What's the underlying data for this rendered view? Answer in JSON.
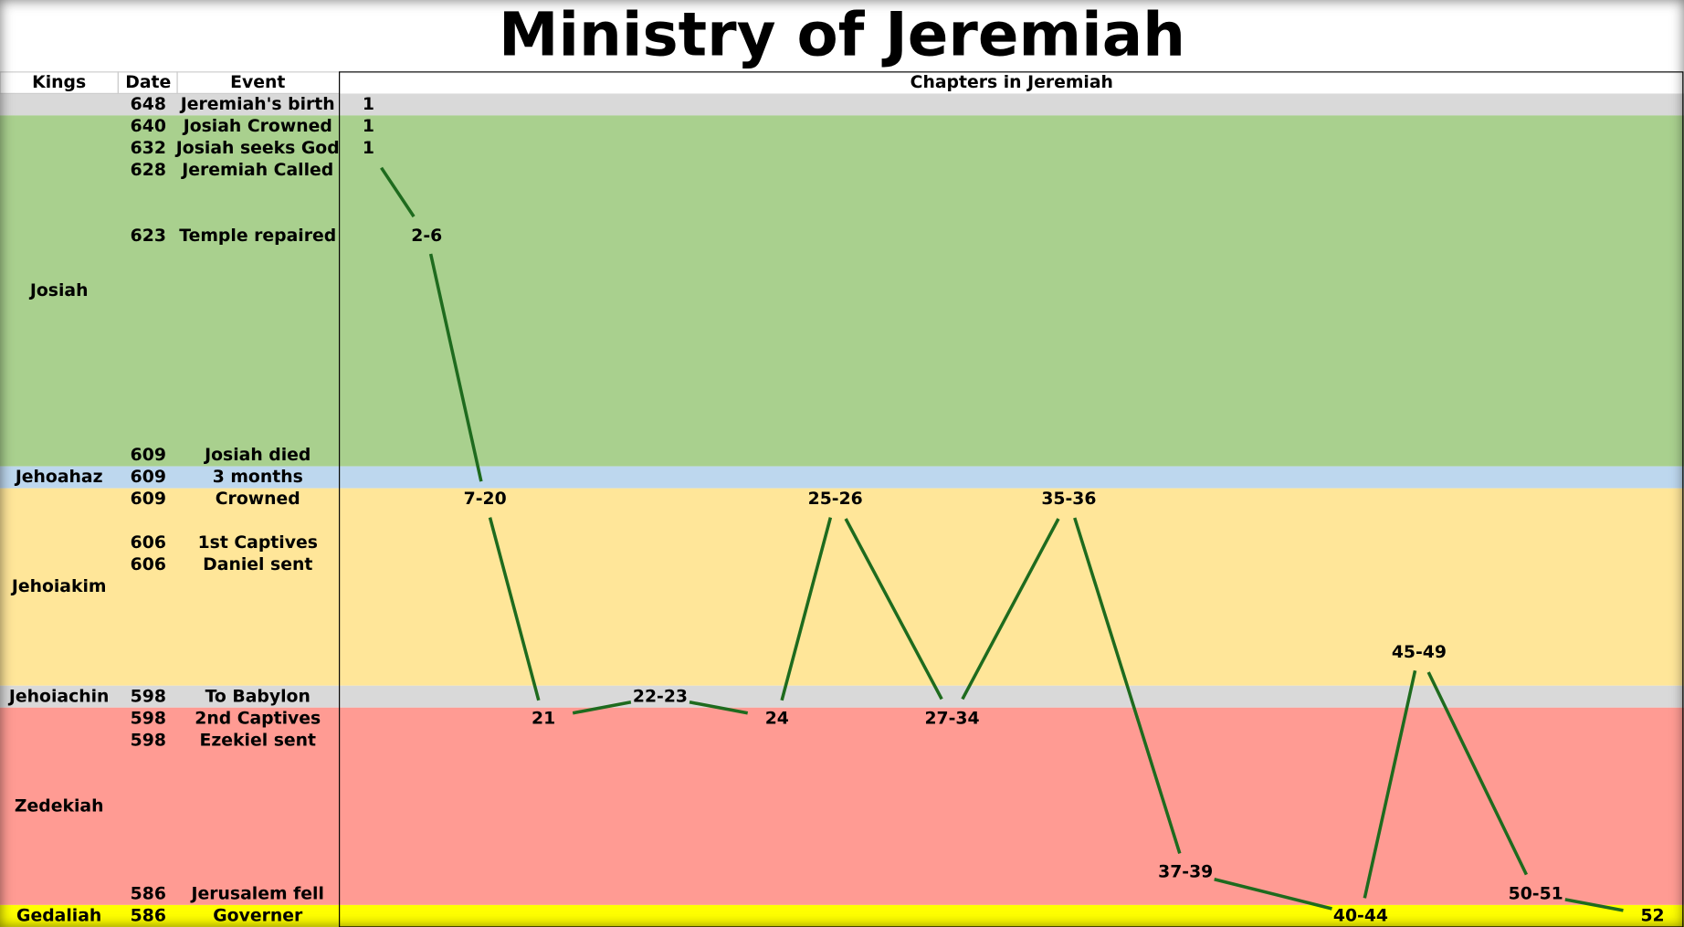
{
  "title": "Ministry of Jeremiah",
  "headers": [
    "Kings",
    "Date",
    "Event",
    "Chapters in Jeremiah"
  ],
  "kings": [
    "Josiah",
    "Jehoahaz",
    "Jehoiakim",
    "Jehoiachin",
    "Zedekiah",
    "Gedaliah"
  ],
  "rows": [
    {
      "date": "648",
      "event": "Jeremiah's birth"
    },
    {
      "date": "640",
      "event": "Josiah Crowned"
    },
    {
      "date": "632",
      "event": "Josiah seeks God"
    },
    {
      "date": "628",
      "event": "Jeremiah Called"
    },
    {},
    {},
    {
      "date": "623",
      "event": "Temple repaired"
    },
    {},
    {},
    {},
    {},
    {},
    {},
    {},
    {},
    {},
    {
      "date": "609",
      "event": "Josiah died"
    },
    {
      "date": "609",
      "event": "3 months"
    },
    {
      "date": "609",
      "event": "Crowned"
    },
    {},
    {
      "date": "606",
      "event": "1st Captives"
    },
    {
      "date": "606",
      "event": "Daniel sent"
    },
    {},
    {},
    {},
    {},
    {},
    {
      "date": "598",
      "event": "To Babylon"
    },
    {
      "date": "598",
      "event": "2nd Captives"
    },
    {
      "date": "598",
      "event": "Ezekiel sent"
    },
    {},
    {},
    {},
    {},
    {},
    {},
    {
      "date": "586",
      "event": "Jerusalem fell"
    },
    {
      "date": "586",
      "event": "Governer"
    }
  ],
  "chapters": [
    "1",
    "1",
    "1",
    "2-6",
    "7-20",
    "21",
    "22-23",
    "24",
    "25-26",
    "27-34",
    "35-36",
    "37-39",
    "40-44",
    "45-49",
    "50-51",
    "52"
  ]
}
